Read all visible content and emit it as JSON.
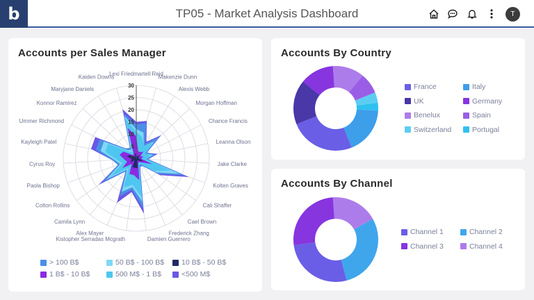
{
  "header": {
    "logo": "b",
    "title": "TP05 - Market Analysis Dashboard",
    "avatar": "T"
  },
  "radar": {
    "title": "Accounts per Sales Manager",
    "chart_data": {
      "type": "radar",
      "title": "Accounts per Sales Manager",
      "rlim": [
        0,
        30
      ],
      "ticks": [
        "0",
        "5",
        "10",
        "15",
        "20",
        "25",
        "30"
      ],
      "categories": [
        "Lexi Friedmartell Reid",
        "Makenzie Dunn",
        "Alexis Webb",
        "Morgan Hoffman",
        "Chance Francis",
        "Leanna Olson",
        "Jake Clarke",
        "Kolten Graves",
        "Cali Shaffer",
        "Cael Brown",
        "Frederick Zhang",
        "Damien Guerrero",
        "Kistopher Serradas Mcgrath",
        "Alex Mayer",
        "Camila Lynn",
        "Colton Rollins",
        "Paola Bishop",
        "Cyrus Roy",
        "Kayleigh Patel",
        "Ummer Richmond",
        "Konnor Ramirez",
        "Maryjane Daniels",
        "Kaiden Downs"
      ],
      "stacked": true,
      "series": [
        {
          "name": "10 B$ - 50 B$",
          "color": "#1f2a66",
          "values": [
            2,
            1,
            1,
            2,
            1,
            1,
            1,
            3,
            2,
            1,
            1,
            4,
            4,
            4,
            1,
            3,
            2,
            2,
            4,
            3,
            1,
            1,
            2
          ]
        },
        {
          "name": "1 B$ - 10 B$",
          "color": "#8a2be2",
          "values": [
            7,
            2,
            2,
            2,
            1,
            2,
            1,
            4,
            1,
            1,
            1,
            5,
            3,
            3,
            2,
            4,
            2,
            3,
            3,
            3,
            1,
            1,
            11
          ]
        },
        {
          "name": "500 M$ - 1 B$",
          "color": "#4fc6f0",
          "values": [
            2,
            6,
            3,
            5,
            2,
            3,
            2,
            8,
            6,
            1,
            1,
            7,
            4,
            6,
            2,
            6,
            2,
            3,
            6,
            7,
            2,
            1,
            4
          ]
        },
        {
          "name": "50 B$ - 100 B$",
          "color": "#7fd8f5",
          "values": [
            1,
            2,
            0,
            1,
            0,
            1,
            0,
            4,
            1,
            0,
            0,
            2,
            1,
            2,
            1,
            2,
            1,
            1,
            2,
            2,
            1,
            1,
            1
          ]
        },
        {
          "name": "> 100 B$",
          "color": "#4a90e6",
          "values": [
            2,
            4,
            1,
            3,
            1,
            1,
            1,
            2,
            1,
            1,
            1,
            3,
            1,
            2,
            1,
            2,
            1,
            1,
            2,
            2,
            1,
            1,
            1
          ]
        },
        {
          "name": "<500 M$",
          "color": "#6a58e4",
          "values": [
            1,
            1,
            1,
            1,
            0,
            1,
            0,
            2,
            1,
            0,
            0,
            2,
            1,
            3,
            0,
            2,
            0,
            0,
            2,
            2,
            0,
            0,
            2
          ]
        }
      ],
      "legend": [
        {
          "label": "> 100 B$",
          "color": "#4a90e6"
        },
        {
          "label": "50 B$ - 100 B$",
          "color": "#7fd8f5"
        },
        {
          "label": "10 B$ - 50 B$",
          "color": "#1f2a66"
        },
        {
          "label": "1 B$ - 10 B$",
          "color": "#8a2be2"
        },
        {
          "label": "500 M$ - 1 B$",
          "color": "#4fc6f0"
        },
        {
          "label": "<500 M$",
          "color": "#6a58e4"
        }
      ]
    }
  },
  "country": {
    "title": "Accounts By Country",
    "chart_data": {
      "type": "pie",
      "donut": true,
      "categories": [
        "Benelux",
        "Spain",
        "Switzerland",
        "Portugal",
        "Italy",
        "France",
        "UK",
        "Germany"
      ],
      "values": [
        12,
        8,
        4,
        3,
        18,
        25,
        17,
        13
      ],
      "colors": [
        "#ad7ceb",
        "#9a5ee6",
        "#5ccdf2",
        "#2fc0ef",
        "#3d9eea",
        "#6a5ee6",
        "#4a37a8",
        "#8635df"
      ]
    },
    "legend": [
      {
        "label": "France",
        "color": "#6a5ee6"
      },
      {
        "label": "Italy",
        "color": "#3d9eea"
      },
      {
        "label": "UK",
        "color": "#4a37a8"
      },
      {
        "label": "Germany",
        "color": "#8635df"
      },
      {
        "label": "Benelux",
        "color": "#ad7ceb"
      },
      {
        "label": "Spain",
        "color": "#9a5ee6"
      },
      {
        "label": "Switzerland",
        "color": "#5ccdf2"
      },
      {
        "label": "Portugal",
        "color": "#2fc0ef"
      }
    ]
  },
  "channel": {
    "title": "Accounts By Channel",
    "chart_data": {
      "type": "pie",
      "donut": true,
      "categories": [
        "Channel 4",
        "Channel 2",
        "Channel 1",
        "Channel 3"
      ],
      "values": [
        18,
        29,
        27,
        26
      ],
      "colors": [
        "#ad7ceb",
        "#3fa6ec",
        "#6a5ee6",
        "#8635df"
      ]
    },
    "legend": [
      {
        "label": "Channel 1",
        "color": "#6a5ee6"
      },
      {
        "label": "Channel 2",
        "color": "#3fa6ec"
      },
      {
        "label": "Channel 3",
        "color": "#8635df"
      },
      {
        "label": "Channel 4",
        "color": "#ad7ceb"
      }
    ]
  }
}
